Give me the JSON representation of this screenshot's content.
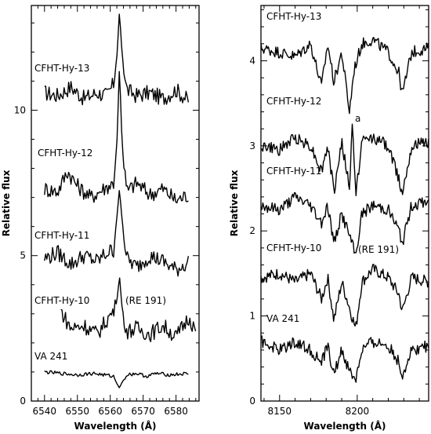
{
  "chart_data": [
    {
      "type": "line",
      "xlabel": "Wavelength (Å)",
      "ylabel": "Relative flux",
      "xlim": [
        6536,
        6587
      ],
      "ylim": [
        0,
        13.6
      ],
      "xticks": [
        6540,
        6550,
        6560,
        6570,
        6580
      ],
      "yticks": [
        0,
        5,
        10
      ],
      "series": [
        {
          "name": "CFHT-Hy-13",
          "baseline": 10.5,
          "x": [
            6540,
            6544,
            6548,
            6552,
            6556,
            6559,
            6561,
            6562,
            6562.8,
            6563.6,
            6565,
            6568,
            6572,
            6576,
            6580,
            6584
          ],
          "y": [
            10.6,
            10.5,
            10.8,
            10.4,
            10.6,
            10.5,
            10.9,
            11.8,
            13.4,
            11.9,
            10.7,
            10.5,
            10.6,
            10.4,
            10.7,
            10.3
          ]
        },
        {
          "name": "CFHT-Hy-12",
          "baseline": 7.2,
          "x": [
            6540,
            6544,
            6547,
            6550,
            6554,
            6558,
            6561,
            6562,
            6562.8,
            6563.6,
            6565,
            6568,
            6572,
            6576,
            6580,
            6584
          ],
          "y": [
            7.3,
            7.2,
            7.9,
            7.4,
            7.0,
            7.3,
            7.5,
            8.8,
            11.5,
            8.8,
            7.2,
            7.5,
            7.1,
            7.3,
            6.9,
            7.1
          ]
        },
        {
          "name": "CFHT-Hy-11",
          "baseline": 4.9,
          "x": [
            6540,
            6544,
            6548,
            6552,
            6556,
            6559,
            6561,
            6562,
            6562.8,
            6563.6,
            6565,
            6568,
            6572,
            6576,
            6580,
            6584
          ],
          "y": [
            4.9,
            5.1,
            4.7,
            5.0,
            4.8,
            5.1,
            5.2,
            6.3,
            7.3,
            6.2,
            4.9,
            4.6,
            5.0,
            4.8,
            4.5,
            4.8
          ]
        },
        {
          "name": "CFHT-Hy-10",
          "baseline": 2.6,
          "x": [
            6545,
            6548,
            6552,
            6556,
            6559,
            6561,
            6562,
            6562.8,
            6563.6,
            6565,
            6568,
            6572,
            6576,
            6580,
            6584,
            6586
          ],
          "y": [
            3.1,
            2.5,
            2.6,
            2.3,
            2.8,
            3.1,
            3.4,
            4.3,
            3.2,
            2.4,
            2.5,
            2.3,
            2.6,
            2.2,
            2.9,
            2.4
          ]
        },
        {
          "name": "VA 241",
          "baseline": 0.95,
          "x": [
            6540,
            6545,
            6550,
            6555,
            6558,
            6561,
            6562,
            6562.8,
            6563.6,
            6565,
            6568,
            6571,
            6574,
            6578,
            6584
          ],
          "y": [
            1.0,
            0.95,
            0.9,
            0.95,
            0.9,
            0.85,
            0.6,
            0.45,
            0.65,
            0.9,
            0.95,
            0.85,
            0.95,
            0.9,
            0.95
          ]
        }
      ],
      "annotations": [
        "(RE 191)"
      ]
    },
    {
      "type": "line",
      "xlabel": "Wavelength (Å)",
      "ylabel": "Relative flux",
      "xlim": [
        8138,
        8246
      ],
      "ylim": [
        0,
        4.65
      ],
      "xticks": [
        8150,
        8200
      ],
      "yticks": [
        0,
        1,
        2,
        3,
        4
      ],
      "series": [
        {
          "name": "CFHT-Hy-13",
          "baseline": 4.1,
          "x": [
            8138,
            8150,
            8160,
            8170,
            8177,
            8181,
            8185,
            8190,
            8195,
            8198,
            8203,
            8210,
            8220,
            8227,
            8229,
            8235,
            8246
          ],
          "y": [
            4.15,
            4.1,
            4.05,
            4.2,
            3.7,
            4.2,
            3.75,
            4.1,
            3.4,
            3.9,
            4.2,
            4.25,
            4.1,
            3.85,
            3.6,
            4.1,
            4.15
          ]
        },
        {
          "name": "CFHT-Hy-12",
          "baseline": 3.0,
          "x": [
            8138,
            8150,
            8160,
            8170,
            8177,
            8181,
            8185,
            8190,
            8195,
            8197,
            8199,
            8203,
            8210,
            8220,
            8227,
            8229,
            8235,
            8246
          ],
          "y": [
            3.0,
            2.95,
            3.1,
            3.0,
            2.7,
            3.0,
            2.45,
            3.05,
            2.5,
            3.3,
            2.4,
            3.05,
            3.1,
            3.0,
            2.6,
            2.45,
            3.0,
            3.05
          ]
        },
        {
          "name": "CFHT-Hy-11",
          "baseline": 2.3,
          "x": [
            8138,
            8150,
            8160,
            8170,
            8177,
            8181,
            8185,
            8190,
            8195,
            8199,
            8203,
            8210,
            8220,
            8227,
            8229,
            8235,
            8246
          ],
          "y": [
            2.3,
            2.25,
            2.4,
            2.3,
            2.1,
            2.3,
            1.85,
            2.2,
            1.95,
            1.7,
            2.2,
            2.3,
            2.25,
            2.0,
            1.85,
            2.3,
            2.35
          ]
        },
        {
          "name": "CFHT-Hy-10",
          "baseline": 1.45,
          "x": [
            8138,
            8150,
            8160,
            8170,
            8177,
            8181,
            8185,
            8190,
            8195,
            8199,
            8203,
            8210,
            8220,
            8227,
            8229,
            8235,
            8246
          ],
          "y": [
            1.45,
            1.5,
            1.4,
            1.5,
            1.2,
            1.45,
            0.95,
            1.4,
            1.1,
            0.85,
            1.4,
            1.55,
            1.45,
            1.25,
            1.05,
            1.45,
            1.4
          ]
        },
        {
          "name": "VA 241",
          "baseline": 0.65,
          "x": [
            8138,
            8150,
            8160,
            8170,
            8177,
            8181,
            8185,
            8190,
            8195,
            8199,
            8203,
            8210,
            8220,
            8227,
            8229,
            8235,
            8246
          ],
          "y": [
            0.7,
            0.6,
            0.7,
            0.6,
            0.45,
            0.65,
            0.3,
            0.6,
            0.35,
            0.25,
            0.6,
            0.7,
            0.65,
            0.45,
            0.3,
            0.6,
            0.65
          ]
        }
      ],
      "annotations": [
        "(RE 191)",
        "a"
      ]
    }
  ]
}
